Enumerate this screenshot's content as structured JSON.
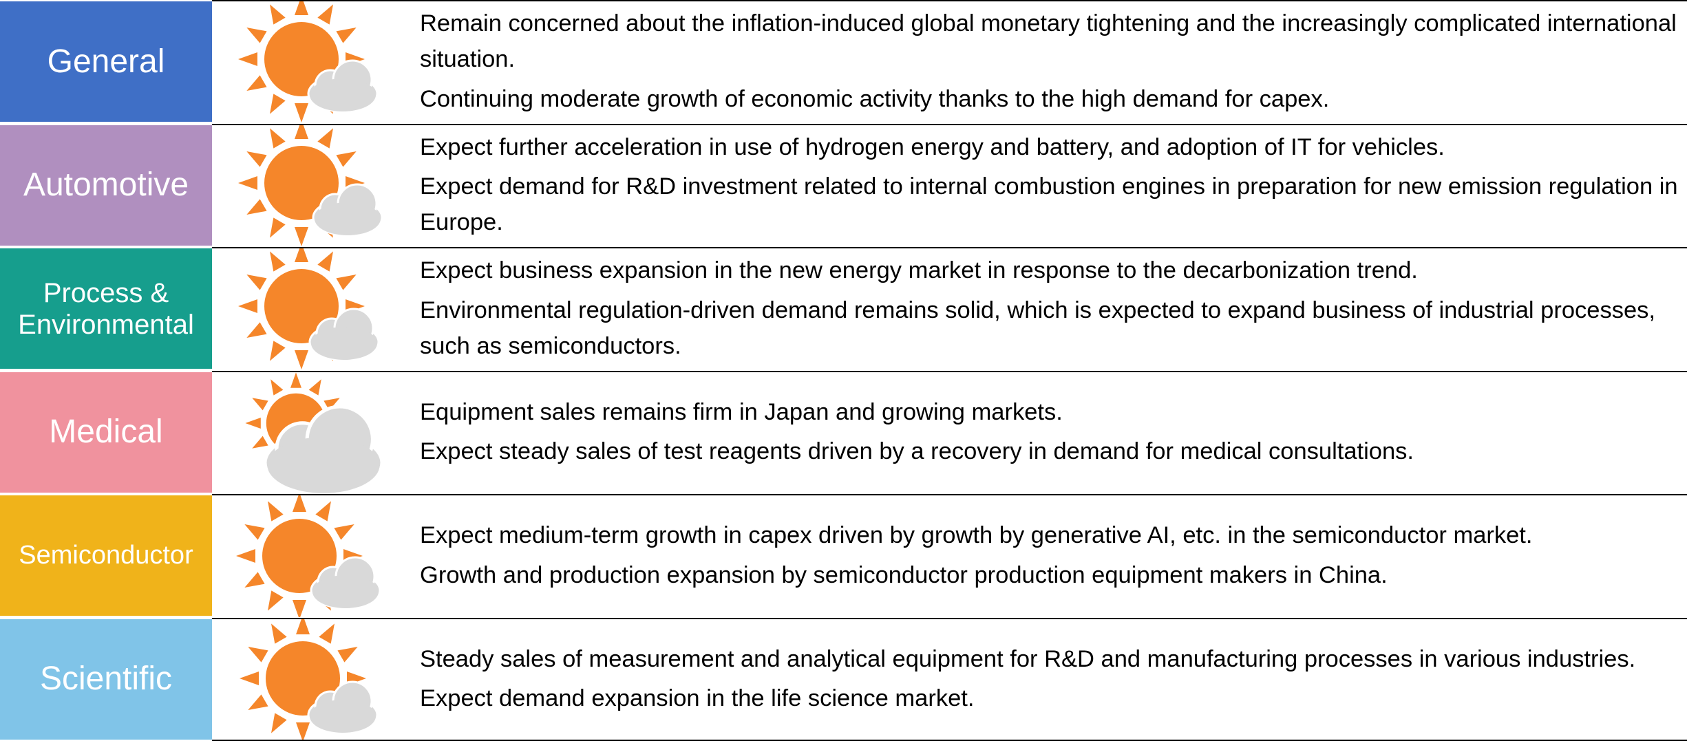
{
  "rows": [
    {
      "label": "General",
      "items": [
        "Remain concerned about the inflation-induced global monetary tightening and the increasingly complicated international situation.",
        "Continuing moderate growth of economic activity thanks to the high demand for capex."
      ]
    },
    {
      "label": "Automotive",
      "items": [
        "Expect further acceleration in use of hydrogen energy and battery, and adoption of IT for vehicles.",
        "Expect demand for R&D investment related to internal combustion engines in preparation for new emission regulation in Europe."
      ]
    },
    {
      "label": "Process & Environmental",
      "items": [
        "Expect business expansion in the new energy market in response to the decarbonization trend.",
        "Environmental regulation-driven demand remains solid, which is expected to expand business of industrial processes, such as semiconductors."
      ]
    },
    {
      "label": "Medical",
      "items": [
        "Equipment sales remains firm in Japan and growing markets.",
        "Expect steady sales of test reagents driven by a recovery in demand for medical consultations."
      ]
    },
    {
      "label": "Semiconductor",
      "items": [
        "Expect medium-term growth in capex driven by growth by generative AI, etc. in the semiconductor market.",
        "Growth and production expansion by semiconductor production equipment makers in China."
      ]
    },
    {
      "label": "Scientific",
      "items": [
        "Steady sales of measurement and analytical equipment for R&D and manufacturing processes in various industries.",
        "Expect demand expansion in the life science market."
      ]
    }
  ]
}
